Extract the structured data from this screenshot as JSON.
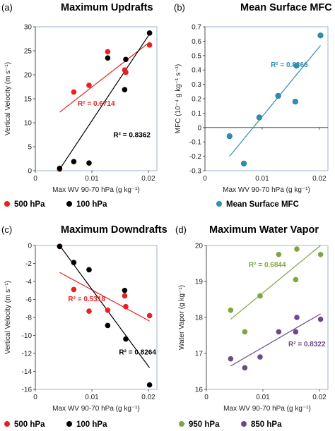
{
  "chart_data": [
    {
      "type": "scatter",
      "panel": "(a)",
      "title": "Maximum Updrafts",
      "xlabel": "Max WV 90-70 hPa (g kg⁻¹)",
      "ylabel": "Vertical Velocity (m s⁻¹)",
      "xlim": [
        0,
        0.0215
      ],
      "ylim": [
        0,
        30
      ],
      "xticks": [
        {
          "v": 0,
          "label": "0"
        },
        {
          "v": 0.01,
          "label": "0.01"
        },
        {
          "v": 0.02,
          "label": "0.02"
        }
      ],
      "yticks": [
        {
          "v": 0,
          "label": "0"
        },
        {
          "v": 5,
          "label": "5"
        },
        {
          "v": 10,
          "label": "10"
        },
        {
          "v": 15,
          "label": "15"
        },
        {
          "v": 20,
          "label": "20"
        },
        {
          "v": 25,
          "label": "25"
        },
        {
          "v": 30,
          "label": "30"
        }
      ],
      "series": [
        {
          "name": "500 hPa",
          "color": "#e8211f",
          "x": [
            0.0043,
            0.0068,
            0.0095,
            0.0128,
            0.0158,
            0.016,
            0.0202
          ],
          "y": [
            0.3,
            16.4,
            17.8,
            24.8,
            21.0,
            20.5,
            26.2
          ],
          "trend": [
            [
              0.0043,
              12.2
            ],
            [
              0.0202,
              26.8
            ]
          ],
          "r2": "R² = 0.6714",
          "r2_at": [
            0.0075,
            13.5
          ]
        },
        {
          "name": "100 hPa",
          "color": "#000000",
          "x": [
            0.0043,
            0.0068,
            0.0095,
            0.0128,
            0.0158,
            0.016,
            0.0202
          ],
          "y": [
            0.5,
            1.9,
            1.6,
            23.5,
            16.9,
            23.2,
            28.7
          ],
          "trend": [
            [
              0.0043,
              0.3
            ],
            [
              0.0202,
              28.5
            ]
          ],
          "r2": "R² = 0.8362",
          "r2_at": [
            0.0138,
            7.0
          ]
        }
      ],
      "legend": "bottom"
    },
    {
      "type": "scatter",
      "panel": "(b)",
      "title": "Mean Surface MFC",
      "xlabel": "Max WV 90-70 hPa (g kg⁻¹)",
      "ylabel": "MFC (10⁻⁴ g kg⁻¹ s⁻¹)",
      "xlim": [
        0,
        0.0215
      ],
      "ylim": [
        -0.3,
        0.7
      ],
      "xticks": [
        {
          "v": 0,
          "label": "0"
        },
        {
          "v": 0.01,
          "label": "0.01"
        },
        {
          "v": 0.02,
          "label": "0.02"
        }
      ],
      "yticks": [
        {
          "v": -0.3,
          "label": "-0.3"
        },
        {
          "v": -0.2,
          "label": "-0.2"
        },
        {
          "v": -0.1,
          "label": "-0.1"
        },
        {
          "v": 0,
          "label": "0"
        },
        {
          "v": 0.1,
          "label": "0.1"
        },
        {
          "v": 0.2,
          "label": "0.2"
        },
        {
          "v": 0.3,
          "label": "0.3"
        },
        {
          "v": 0.4,
          "label": "0.4"
        },
        {
          "v": 0.5,
          "label": "0.5"
        },
        {
          "v": 0.6,
          "label": "0.6"
        },
        {
          "v": 0.7,
          "label": "0.7"
        }
      ],
      "series": [
        {
          "name": "Mean Surface MFC",
          "color": "#2f8fae",
          "x": [
            0.0043,
            0.0068,
            0.0095,
            0.0128,
            0.0158,
            0.016,
            0.0202
          ],
          "y": [
            -0.06,
            -0.25,
            0.07,
            0.22,
            0.18,
            0.43,
            0.64
          ],
          "trend": [
            [
              0.0043,
              -0.2
            ],
            [
              0.0202,
              0.57
            ]
          ],
          "r2": "R² = 0.8366",
          "r2_at": [
            0.0115,
            0.42
          ]
        }
      ],
      "legend": "bottom"
    },
    {
      "type": "scatter",
      "panel": "(c)",
      "title": "Maximum Downdrafts",
      "xlabel": "Max WV 90-70 hPa (g kg⁻¹)",
      "ylabel": "Vertical Velocity (m s⁻¹)",
      "xlim": [
        0,
        0.0215
      ],
      "ylim": [
        -16,
        0
      ],
      "xticks": [
        {
          "v": 0,
          "label": "0"
        },
        {
          "v": 0.01,
          "label": "0.01"
        },
        {
          "v": 0.02,
          "label": "0.02"
        }
      ],
      "yticks": [
        {
          "v": 0,
          "label": "0"
        },
        {
          "v": -2,
          "label": "-2"
        },
        {
          "v": -4,
          "label": "-4"
        },
        {
          "v": -6,
          "label": "-6"
        },
        {
          "v": -8,
          "label": "-8"
        },
        {
          "v": -10,
          "label": "-10"
        },
        {
          "v": -12,
          "label": "-12"
        },
        {
          "v": -14,
          "label": "-14"
        },
        {
          "v": -16,
          "label": "-16"
        }
      ],
      "series": [
        {
          "name": "500 hPa",
          "color": "#e8211f",
          "x": [
            0.0043,
            0.0068,
            0.0095,
            0.0128,
            0.0158,
            0.016,
            0.0202
          ],
          "y": [
            -0.1,
            -4.9,
            -7.3,
            -7.2,
            -5.6,
            -6.8,
            -7.8
          ],
          "trend": [
            [
              0.0043,
              -3.0
            ],
            [
              0.0202,
              -8.4
            ]
          ],
          "r2": "R² = 0.5318",
          "r2_at": [
            0.0058,
            -6.2
          ]
        },
        {
          "name": "100 hPa",
          "color": "#000000",
          "x": [
            0.0043,
            0.0068,
            0.0095,
            0.0128,
            0.0158,
            0.016,
            0.0202
          ],
          "y": [
            -0.1,
            -1.9,
            -2.7,
            -8.9,
            -5.0,
            -10.4,
            -15.5
          ],
          "trend": [
            [
              0.0043,
              0.0
            ],
            [
              0.0202,
              -13.6
            ]
          ],
          "r2": "R² = 0.8264",
          "r2_at": [
            0.0148,
            -12.1
          ]
        }
      ],
      "legend": "bottom"
    },
    {
      "type": "scatter",
      "panel": "(d)",
      "title": "Maximum Water Vapor",
      "xlabel": "Max WV 90-70 hPa (g kg⁻¹)",
      "ylabel": "Water Vapor (g kg⁻¹)",
      "xlim": [
        0,
        0.0215
      ],
      "ylim": [
        16,
        20
      ],
      "xticks": [
        {
          "v": 0,
          "label": "0"
        },
        {
          "v": 0.01,
          "label": "0.01"
        },
        {
          "v": 0.02,
          "label": "0.02"
        }
      ],
      "yticks": [
        {
          "v": 16,
          "label": "16"
        },
        {
          "v": 17,
          "label": "17"
        },
        {
          "v": 18,
          "label": "18"
        },
        {
          "v": 19,
          "label": "19"
        },
        {
          "v": 20,
          "label": "20"
        }
      ],
      "series": [
        {
          "name": "950 hPa",
          "color": "#7fa442",
          "x": [
            0.0043,
            0.0068,
            0.0095,
            0.0128,
            0.0158,
            0.016,
            0.0202
          ],
          "y": [
            18.2,
            17.6,
            18.6,
            19.75,
            19.05,
            19.9,
            19.75
          ],
          "trend": [
            [
              0.0043,
              17.95
            ],
            [
              0.0202,
              20.0
            ]
          ],
          "r2": "R² = 0.6844",
          "r2_at": [
            0.0075,
            19.4
          ]
        },
        {
          "name": "850 hPa",
          "color": "#6a4a8c",
          "x": [
            0.0043,
            0.0068,
            0.0095,
            0.0128,
            0.0158,
            0.016,
            0.0202
          ],
          "y": [
            16.85,
            16.6,
            16.9,
            17.6,
            17.6,
            18.0,
            17.95
          ],
          "trend": [
            [
              0.0043,
              16.65
            ],
            [
              0.0202,
              18.1
            ]
          ],
          "r2": "R² = 0.8322",
          "r2_at": [
            0.0145,
            17.2
          ]
        }
      ],
      "legend": "bottom"
    }
  ]
}
